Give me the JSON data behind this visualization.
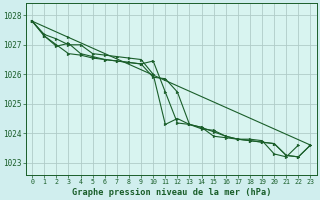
{
  "title": "Graphe pression niveau de la mer (hPa)",
  "background_color": "#d0eeee",
  "plot_bg_color": "#d8f4f0",
  "grid_color": "#b0ccc8",
  "line_color": "#1a5e2a",
  "xlim": [
    -0.5,
    23.5
  ],
  "ylim": [
    1022.6,
    1028.4
  ],
  "yticks": [
    1023,
    1024,
    1025,
    1026,
    1027,
    1028
  ],
  "xticks": [
    0,
    1,
    2,
    3,
    4,
    5,
    6,
    7,
    8,
    9,
    10,
    11,
    12,
    13,
    14,
    15,
    16,
    17,
    18,
    19,
    20,
    21,
    22,
    23
  ],
  "series": [
    [
      1027.8,
      1027.35,
      1027.2,
      1027.0,
      1027.0,
      1026.7,
      1026.65,
      1026.6,
      1026.55,
      1026.5,
      1026.0,
      1024.3,
      1024.5,
      1024.3,
      1024.15,
      1024.1,
      1023.9,
      1023.8,
      1023.8,
      1023.75,
      1023.3,
      1023.2,
      1023.6,
      null
    ],
    [
      1027.8,
      1027.3,
      1027.0,
      1026.7,
      1026.65,
      1026.55,
      1026.5,
      1026.45,
      1026.4,
      1026.35,
      1026.45,
      1025.4,
      1024.35,
      1024.3,
      1024.2,
      1024.05,
      1023.9,
      1023.8,
      1023.75,
      1023.7,
      1023.65,
      1023.25,
      1023.2,
      1023.6
    ],
    [
      1027.8,
      1027.3,
      1026.95,
      1027.05,
      1026.7,
      1026.6,
      1026.5,
      1026.45,
      1026.4,
      1026.35,
      1025.9,
      1025.85,
      1025.4,
      1024.3,
      1024.2,
      1023.9,
      1023.85,
      1023.8,
      1023.75,
      1023.7,
      1023.65,
      1023.25,
      1023.2,
      1023.6
    ],
    [
      1027.8,
      null,
      null,
      1027.25,
      null,
      null,
      null,
      null,
      null,
      null,
      null,
      null,
      null,
      null,
      null,
      null,
      null,
      null,
      null,
      null,
      null,
      null,
      null,
      1023.6
    ]
  ]
}
